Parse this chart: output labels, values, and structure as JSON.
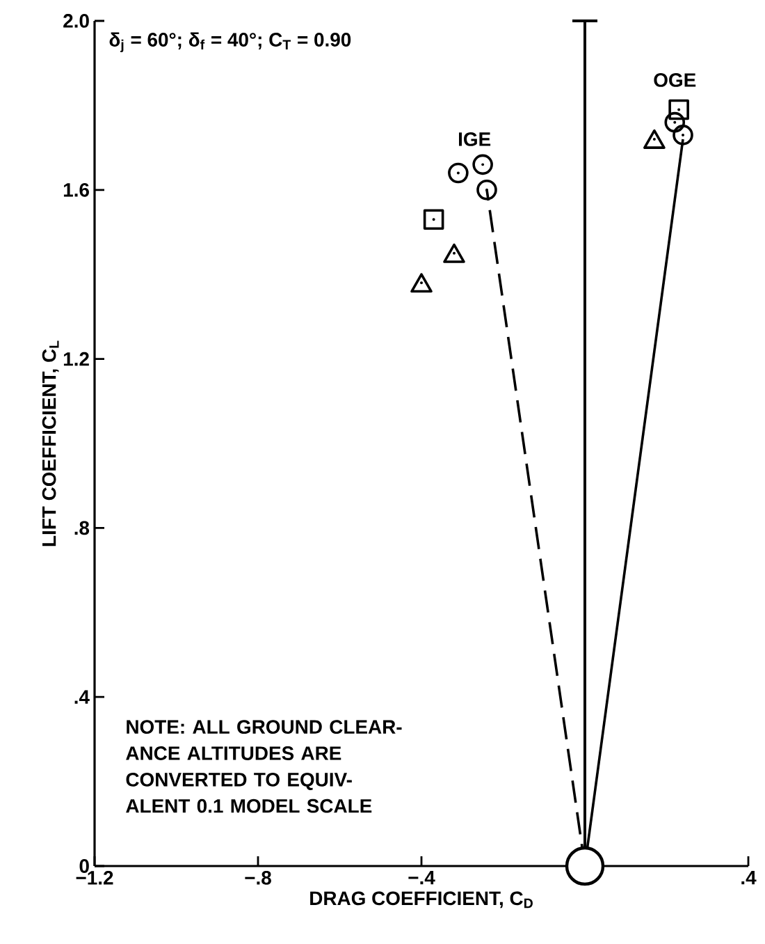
{
  "chart_data": {
    "type": "scatter",
    "xlabel": "DRAG COEFFICIENT, C$_{D}$",
    "ylabel": "LIFT COEFFICIENT, C$_{L}$",
    "xlim": [
      -1.2,
      0.4
    ],
    "ylim": [
      0,
      2.0
    ],
    "xticks": [
      {
        "value": -1.2,
        "label": "−1.2"
      },
      {
        "value": -0.8,
        "label": "−.8"
      },
      {
        "value": -0.4,
        "label": "−.4"
      },
      {
        "value": 0.4,
        "label": ".4"
      }
    ],
    "yticks": [
      0,
      {
        "value": 0.4,
        "label": ".4"
      },
      {
        "value": 0.8,
        "label": ".8"
      },
      1.2,
      1.6,
      {
        "value": 2.0,
        "label": "2.0"
      }
    ],
    "ref_lines": [
      {
        "axis": "x",
        "value": 0,
        "color": "#000000"
      }
    ],
    "annotations": [
      "δ$_{j}$ = 60°;  δ$_{f}$ = 40°;  C$_{T}$ = 0.90",
      "IGE",
      "OGE",
      "NOTE: ALL GROUND CLEAR-ANCE ALTITUDES ARE CONVERTED TO EQUIV-ALENT 0.1 MODEL SCALE"
    ],
    "series": [
      {
        "type": "line",
        "line_style": "dashed",
        "marker": "none",
        "color": "#000000",
        "x": [
          0,
          -0.24
        ],
        "values": [
          0,
          1.6
        ]
      },
      {
        "type": "line",
        "line_style": "solid",
        "marker": "none",
        "color": "#000000",
        "x": [
          0,
          0.24
        ],
        "values": [
          0,
          1.72
        ]
      },
      {
        "marker": "circle",
        "color": "#000000",
        "x": [
          -0.31,
          -0.25,
          -0.24,
          0.22,
          0.24
        ],
        "values": [
          1.64,
          1.66,
          1.6,
          1.76,
          1.73
        ]
      },
      {
        "marker": "square",
        "color": "#000000",
        "x": [
          -0.37,
          0.23
        ],
        "values": [
          1.53,
          1.79
        ]
      },
      {
        "marker": "triangle",
        "color": "#000000",
        "x": [
          -0.32,
          -0.4,
          0.17
        ],
        "values": [
          1.45,
          1.38,
          1.72
        ]
      },
      {
        "marker": "cross",
        "color": "#000000",
        "x": [
          0
        ],
        "values": [
          0
        ]
      }
    ]
  }
}
